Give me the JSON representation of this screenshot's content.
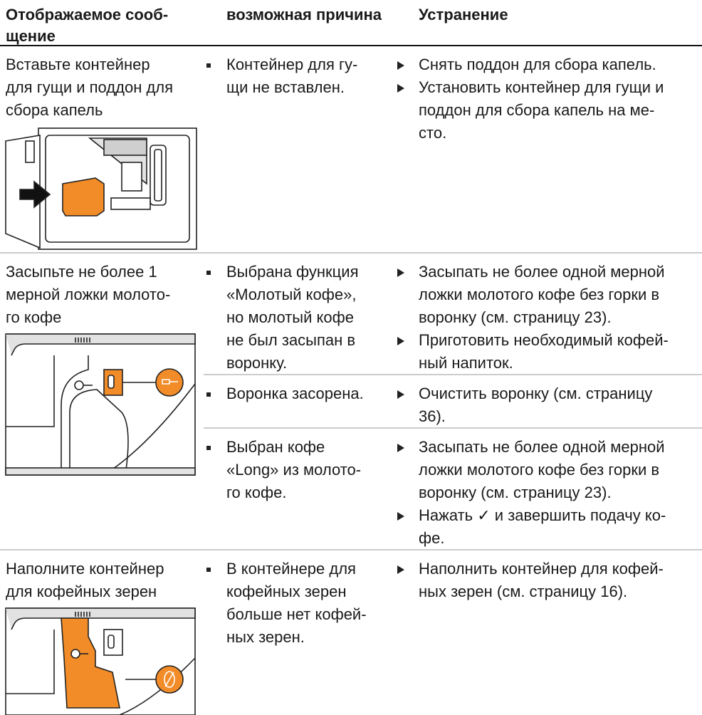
{
  "table": {
    "header": [
      [
        "Отображаемое сооб-",
        "щение"
      ],
      [
        "возможная причина"
      ],
      [
        "Устранение"
      ]
    ],
    "rows": [
      {
        "message": [
          "Вставьте контейнер",
          "для гущи и поддон для",
          "сбора капель"
        ],
        "causes": [
          {
            "cause": [
              "Контейнер для гу-",
              "щи не вставлен."
            ],
            "remedies": [
              [
                "Снять поддон для сбора капель."
              ],
              [
                "Установить контейнер для гущи и",
                "поддон для сбора капель на ме-",
                "сто."
              ]
            ]
          }
        ]
      },
      {
        "message": [
          "Засыпьте не более 1",
          "мерной ложки молото-",
          "го кофе"
        ],
        "causes": [
          {
            "cause": [
              "Выбрана функция",
              "«Молотый кофе»,",
              "но молотый кофе",
              "не был засыпан в",
              "воронку."
            ],
            "remedies": [
              [
                "Засыпать не более одной мерной",
                "ложки молотого кофе без горки в",
                "воронку (см. страницу 23)."
              ],
              [
                "Приготовить необходимый кофей-",
                "ный напиток."
              ]
            ]
          },
          {
            "cause": [
              "Воронка засорена."
            ],
            "remedies": [
              [
                "Очистить воронку (см. страницу",
                "36)."
              ]
            ]
          },
          {
            "cause": [
              "Выбран кофе",
              "«Long» из молото-",
              "го кофе."
            ],
            "remedies": [
              [
                "Засыпать не более одной мерной",
                "ложки молотого кофе без горки в",
                "воронку (см. страницу 23)."
              ],
              [
                "Нажать ✓ и завершить подачу ко-",
                "фе."
              ]
            ]
          }
        ]
      },
      {
        "message": [
          "Наполните контейнер",
          "для кофейных зерен"
        ],
        "causes": [
          {
            "cause": [
              "В контейнере для",
              "кофейных зерен",
              "больше нет кофей-",
              "ных зерен."
            ],
            "remedies": [
              [
                "Наполнить контейнер для кофей-",
                "ных зерен (см. страницу 16)."
              ]
            ]
          }
        ]
      }
    ]
  }
}
